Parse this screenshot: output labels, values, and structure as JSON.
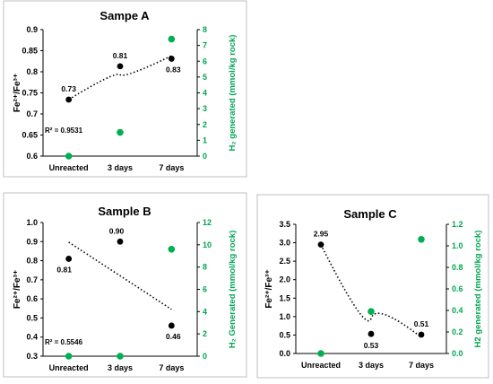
{
  "colors": {
    "fe_ratio": "#000000",
    "h2": "#00b050"
  },
  "chart_data": [
    {
      "type": "scatter",
      "title": "Sampe A",
      "categories": [
        "Unreacted",
        "3 days",
        "7 days"
      ],
      "ylabel": "Fe²⁺/Fe³⁺",
      "y2label": "H₂ generated (mmol/kg rock)",
      "ylim": [
        0.6,
        0.9
      ],
      "yticks": [
        "0.6",
        "0.65",
        "0.7",
        "0.75",
        "0.8",
        "0.85",
        "0.9"
      ],
      "y2lim": [
        0,
        8
      ],
      "y2ticks": [
        "0",
        "1",
        "2",
        "3",
        "4",
        "5",
        "6",
        "7",
        "8"
      ],
      "series": [
        {
          "axis": "left",
          "color": "#000000",
          "values": [
            0.734,
            0.813,
            0.831
          ],
          "labels": [
            "0.73",
            "0.81",
            "0.83"
          ]
        },
        {
          "axis": "right",
          "color": "#00b050",
          "values": [
            0.0,
            1.5,
            7.4
          ]
        }
      ],
      "trendline": {
        "type": "logarithmic",
        "r2_label": "R² = 0.9531"
      },
      "grid": false
    },
    {
      "type": "scatter",
      "title": "Sample B",
      "categories": [
        "Unreacted",
        "3 days",
        "7 days"
      ],
      "ylabel": "Fe²⁺/Fe³⁺",
      "y2label": "H₂ Generated (mmol/kg rock)",
      "ylim": [
        0.3,
        1.0
      ],
      "yticks": [
        "0.3",
        "0.4",
        "0.5",
        "0.6",
        "0.7",
        "0.8",
        "0.9",
        "1.0"
      ],
      "y2lim": [
        0,
        12
      ],
      "y2ticks": [
        "0",
        "2",
        "4",
        "6",
        "8",
        "10",
        "12"
      ],
      "series": [
        {
          "axis": "left",
          "color": "#000000",
          "values": [
            0.81,
            0.9,
            0.46
          ],
          "labels": [
            "0.81",
            "0.90",
            "0.46"
          ]
        },
        {
          "axis": "right",
          "color": "#00b050",
          "values": [
            0.0,
            0.0,
            9.6
          ]
        }
      ],
      "trendline": {
        "type": "linear",
        "r2_label": "R² = 0.5546"
      },
      "grid": false
    },
    {
      "type": "scatter",
      "title": "Sample C",
      "categories": [
        "Unreacted",
        "3 days",
        "7 days"
      ],
      "ylabel": "Fe²⁺/Fe³⁺",
      "y2label": "H2 generated (mmol/kg rock)",
      "ylim": [
        0.0,
        3.5
      ],
      "yticks": [
        "0.0",
        "0.5",
        "1.0",
        "1.5",
        "2.0",
        "2.5",
        "3.0",
        "3.5"
      ],
      "y2lim": [
        0.0,
        1.2
      ],
      "y2ticks": [
        "0.0",
        "0.2",
        "0.4",
        "0.6",
        "0.8",
        "1.0",
        "1.2"
      ],
      "series": [
        {
          "axis": "left",
          "color": "#000000",
          "values": [
            2.95,
            0.53,
            0.51
          ],
          "labels": [
            "2.95",
            "0.53",
            "0.51"
          ]
        },
        {
          "axis": "right",
          "color": "#00b050",
          "values": [
            0.0,
            0.39,
            1.06
          ]
        }
      ],
      "trendline": {
        "type": "exponential",
        "r2_label": ""
      },
      "grid": false
    }
  ]
}
